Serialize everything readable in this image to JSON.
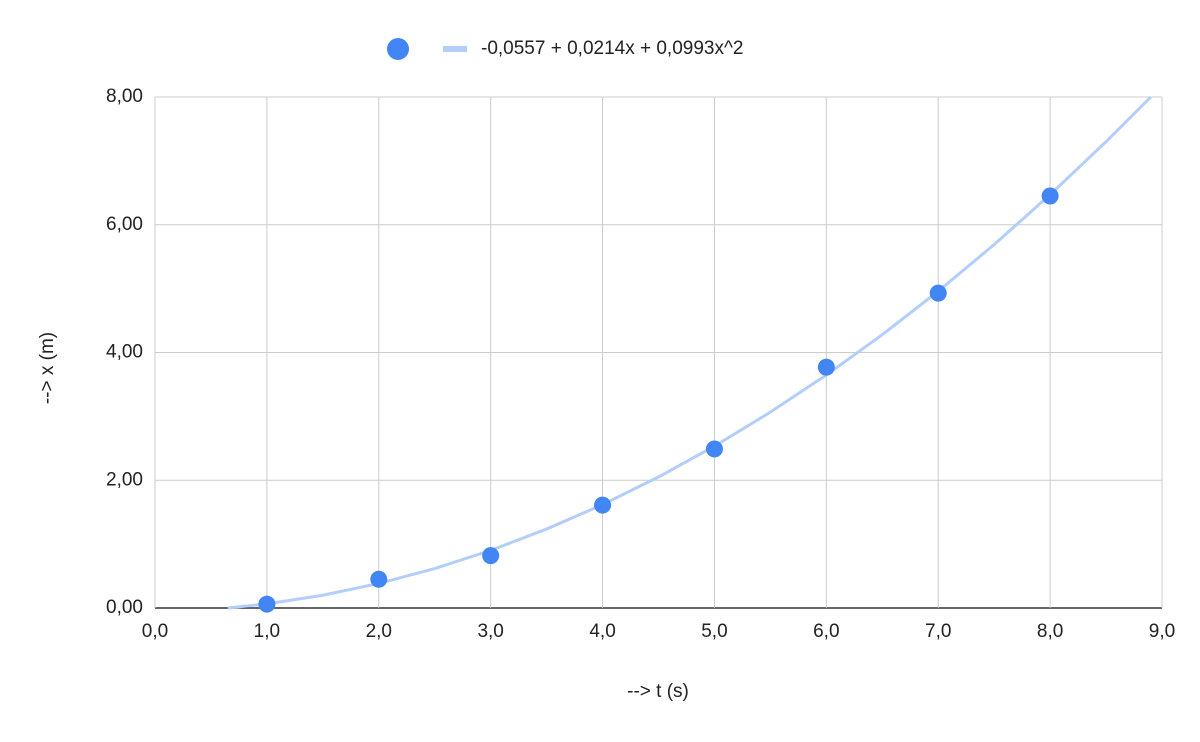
{
  "chart_data": {
    "type": "scatter",
    "x_label": "--> t (s)",
    "y_label": "--> x (m)",
    "series": [
      {
        "color": "#4285f4",
        "x": [
          1,
          2,
          3,
          4,
          5,
          6,
          7,
          8
        ],
        "values": [
          0.06,
          0.45,
          0.82,
          1.61,
          2.49,
          3.77,
          4.93,
          6.45
        ]
      },
      {
        "name": "-0,0557 + 0,0214x + 0,0993x^2",
        "color": "#b3cefb",
        "kind": "trendline",
        "x": [
          0.65,
          1,
          1.5,
          2,
          2.5,
          3,
          3.5,
          4,
          4.5,
          5,
          5.5,
          6,
          6.5,
          7,
          7.5,
          8,
          8.5,
          8.9
        ],
        "values": [
          0,
          0.065,
          0.2,
          0.384,
          0.618,
          0.902,
          1.236,
          1.619,
          2.051,
          2.534,
          3.066,
          3.648,
          4.279,
          4.96,
          5.69,
          6.471,
          7.301,
          8
        ]
      }
    ],
    "xlim": [
      0,
      9
    ],
    "ylim": [
      0,
      8
    ],
    "xticks": [
      {
        "value": 0,
        "label": "0,0"
      },
      {
        "value": 1,
        "label": "1,0"
      },
      {
        "value": 2,
        "label": "2,0"
      },
      {
        "value": 3,
        "label": "3,0"
      },
      {
        "value": 4,
        "label": "4,0"
      },
      {
        "value": 5,
        "label": "5,0"
      },
      {
        "value": 6,
        "label": "6,0"
      },
      {
        "value": 7,
        "label": "7,0"
      },
      {
        "value": 8,
        "label": "8,0"
      },
      {
        "value": 9,
        "label": "9,0"
      }
    ],
    "yticks": [
      {
        "value": 0,
        "label": "0,00"
      },
      {
        "value": 2,
        "label": "2,00"
      },
      {
        "value": 4,
        "label": "4,00"
      },
      {
        "value": 6,
        "label": "6,00"
      },
      {
        "value": 8,
        "label": "8,00"
      }
    ],
    "grid": true,
    "legend": "top"
  }
}
